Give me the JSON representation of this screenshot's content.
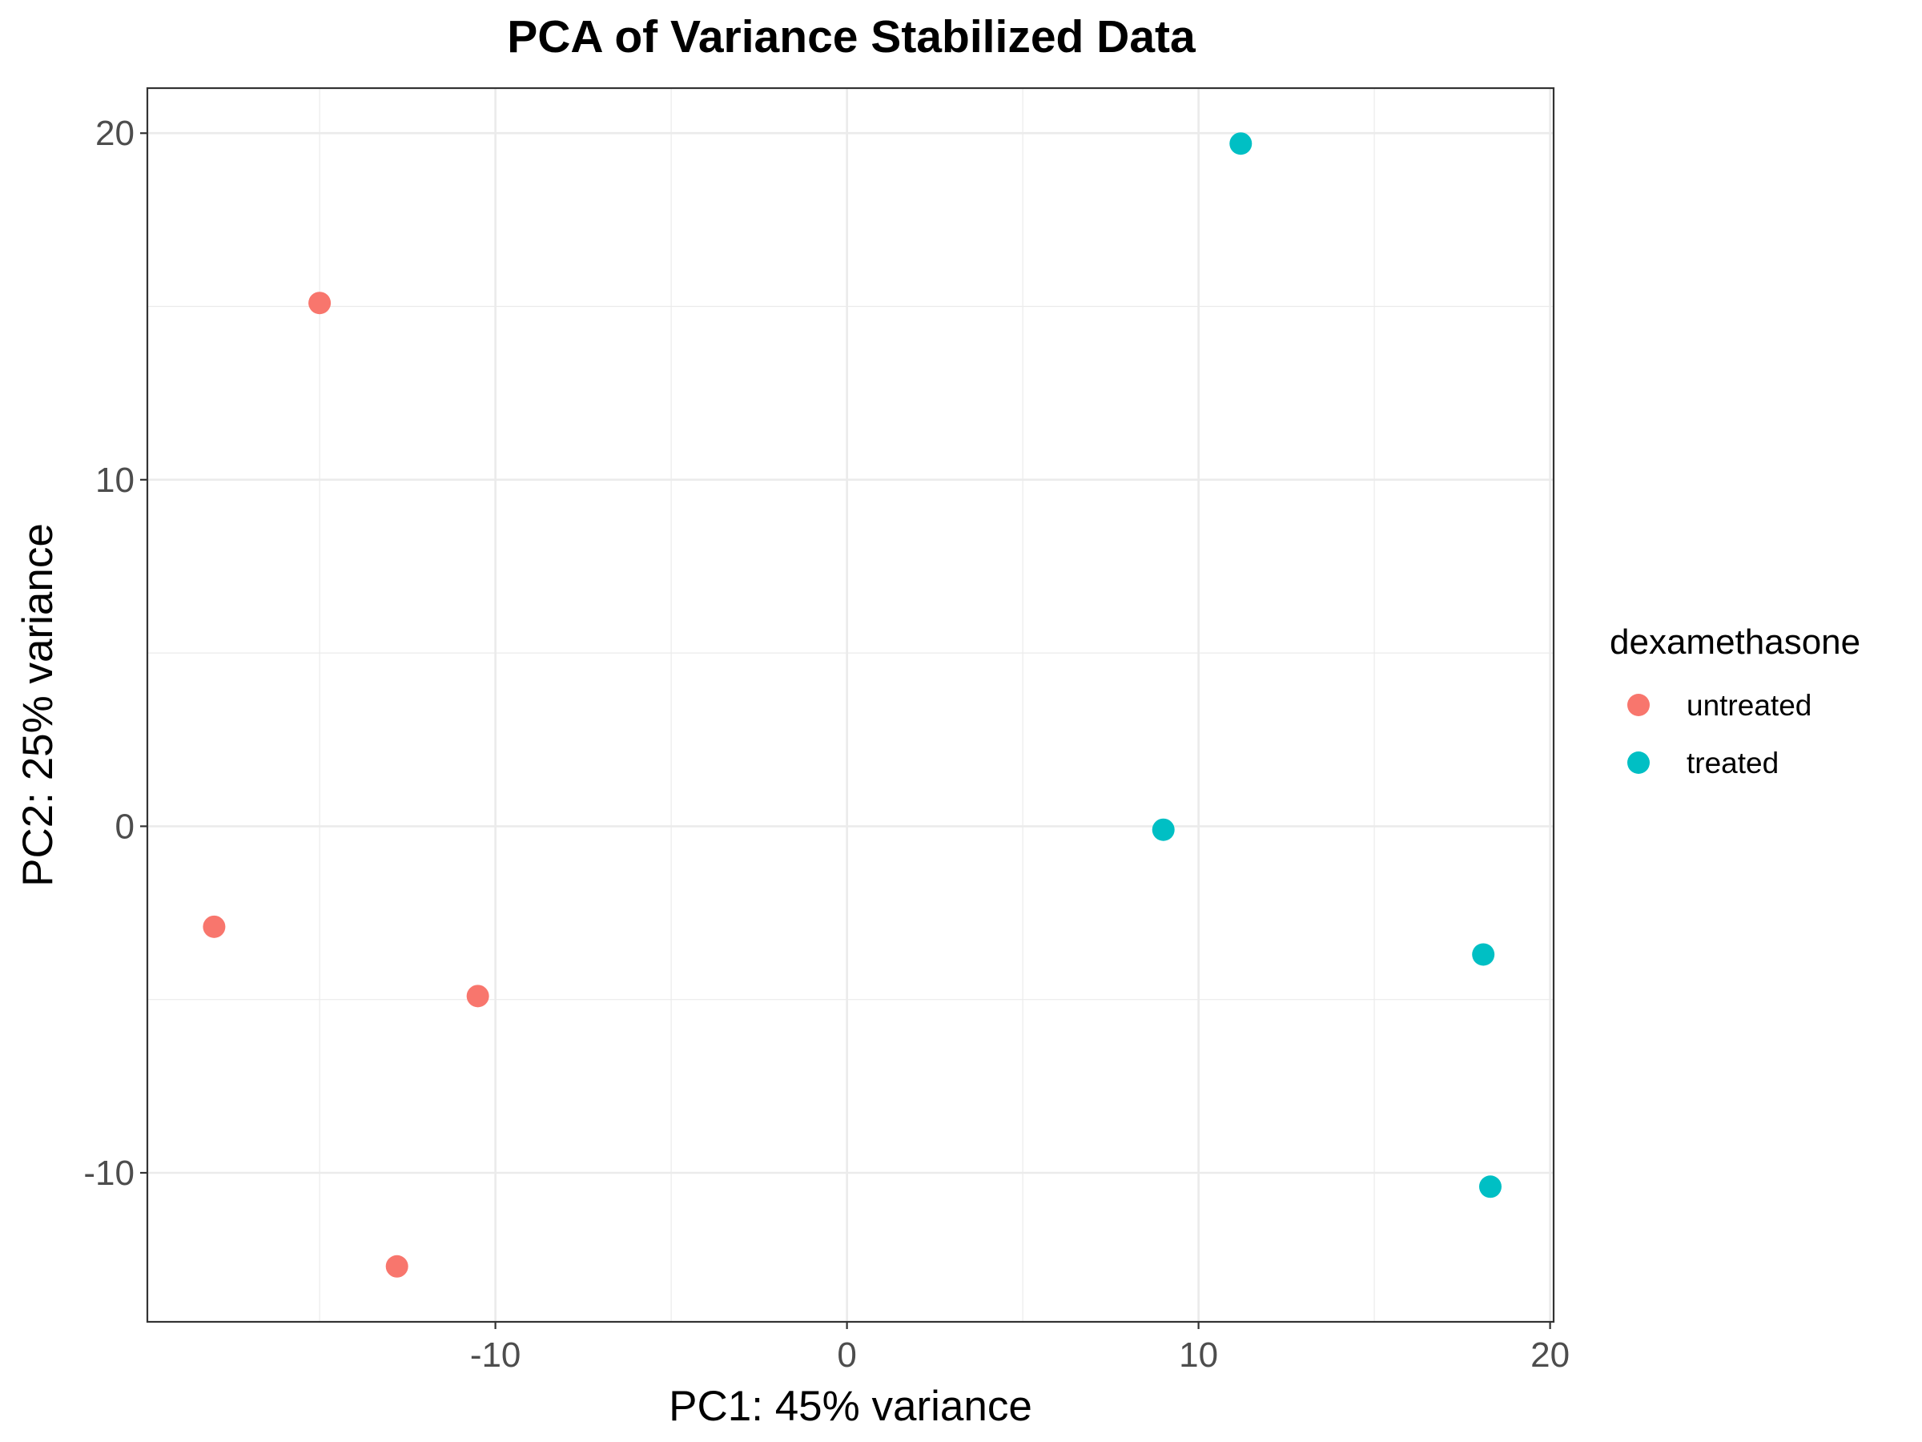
{
  "chart_data": {
    "type": "scatter",
    "title": "PCA of Variance Stabilized Data",
    "xlabel": "PC1: 45% variance",
    "ylabel": "PC2: 25% variance",
    "xlim": [
      -19.9,
      20.1
    ],
    "ylim": [
      -14.3,
      21.3
    ],
    "x_ticks": [
      -10,
      0,
      10,
      20
    ],
    "y_ticks": [
      -10,
      0,
      10,
      20
    ],
    "x_tick_labels": [
      "-10",
      "0",
      "10",
      "20"
    ],
    "y_tick_labels": [
      "-10",
      "0",
      "10",
      "20"
    ],
    "grid": true,
    "legend_position": "right",
    "legend_title": "dexamethasone",
    "series": [
      {
        "name": "untreated",
        "color": "#F8766D",
        "points": [
          {
            "x": -15.0,
            "y": 15.1
          },
          {
            "x": -18.0,
            "y": -2.9
          },
          {
            "x": -10.5,
            "y": -4.9
          },
          {
            "x": -12.8,
            "y": -12.7
          }
        ]
      },
      {
        "name": "treated",
        "color": "#00BFC4",
        "points": [
          {
            "x": 11.2,
            "y": 19.7
          },
          {
            "x": 9.0,
            "y": -0.1
          },
          {
            "x": 18.1,
            "y": -3.7
          },
          {
            "x": 18.3,
            "y": -10.4
          }
        ]
      }
    ]
  }
}
